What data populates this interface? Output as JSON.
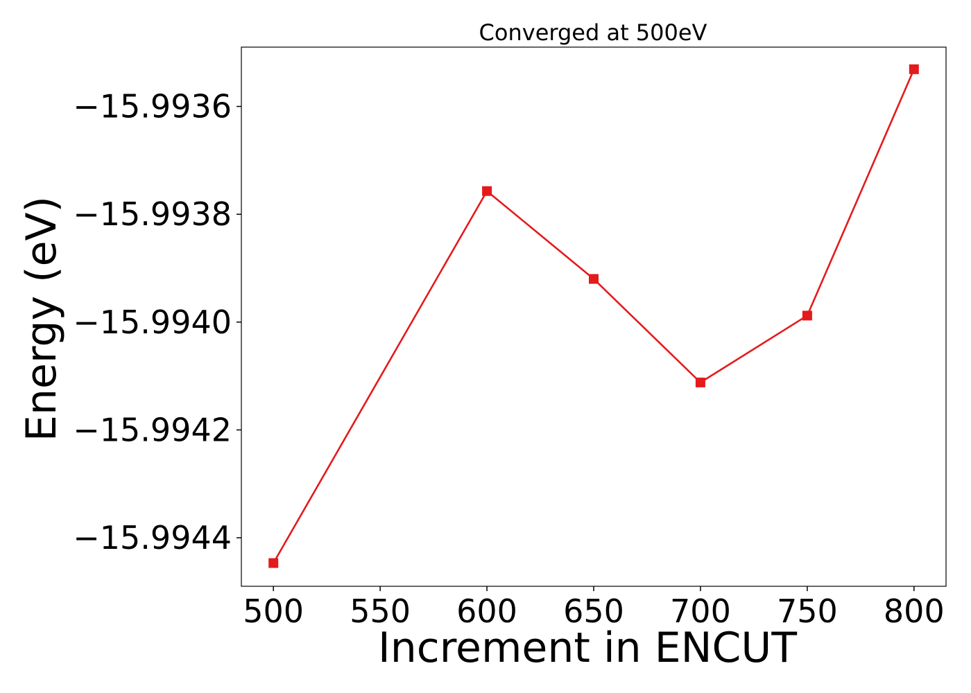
{
  "chart_data": {
    "type": "line",
    "title": "Converged at 500eV",
    "xlabel": "Increment in ENCUT",
    "ylabel": "Energy (eV)",
    "x": [
      500,
      600,
      650,
      700,
      750,
      800
    ],
    "series": [
      {
        "values": [
          -15.994447,
          -15.993757,
          -15.99392,
          -15.994112,
          -15.993988,
          -15.993531
        ],
        "color": "#e41a1c",
        "marker": "square"
      }
    ],
    "xlim": [
      485,
      815
    ],
    "ylim": [
      -15.99449,
      -15.99349
    ],
    "xticks": [
      500,
      550,
      600,
      650,
      700,
      750,
      800
    ],
    "xtick_labels": [
      "500",
      "550",
      "600",
      "650",
      "700",
      "750",
      "800"
    ],
    "yticks": [
      -15.9944,
      -15.9942,
      -15.994,
      -15.9938,
      -15.9936
    ],
    "ytick_labels": [
      "−15.9944",
      "−15.9942",
      "−15.9940",
      "−15.9938",
      "−15.9936"
    ],
    "grid": false,
    "legend": "none"
  }
}
